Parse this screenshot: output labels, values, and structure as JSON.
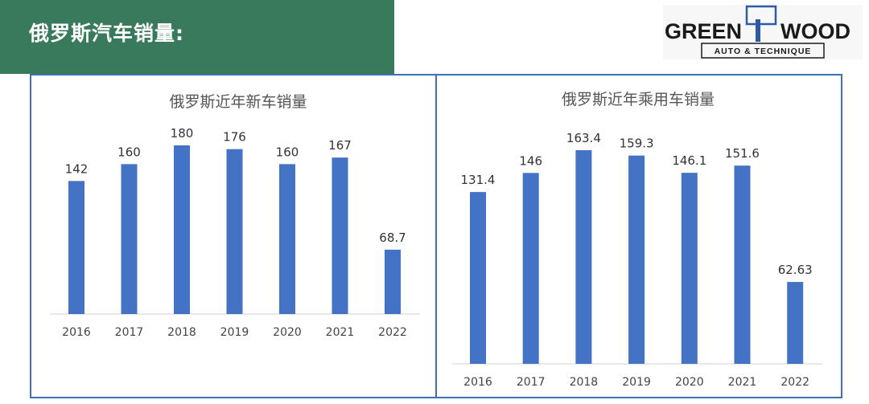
{
  "header": {
    "title": "俄罗斯汽车销量:"
  },
  "logo": {
    "word_left": "GREEN",
    "word_right": "WOOD",
    "tagline": "AUTO & TECHNIQUE"
  },
  "colors": {
    "header_green": "#3a7a5c",
    "bar_blue": "#4472c4",
    "frame_blue": "#3f6fb5"
  },
  "chart_data": [
    {
      "type": "bar",
      "title": "俄罗斯近年新车销量",
      "categories": [
        "2016",
        "2017",
        "2018",
        "2019",
        "2020",
        "2021",
        "2022"
      ],
      "values": [
        142,
        160,
        180,
        176,
        160,
        167,
        68.7
      ],
      "value_labels": [
        "142",
        "160",
        "180",
        "176",
        "160",
        "167",
        "68.7"
      ],
      "ylim": [
        0,
        180
      ],
      "grid": false,
      "legend": "none",
      "xlabel": "",
      "ylabel": ""
    },
    {
      "type": "bar",
      "title": "俄罗斯近年乘用车销量",
      "categories": [
        "2016",
        "2017",
        "2018",
        "2019",
        "2020",
        "2021",
        "2022"
      ],
      "values": [
        131.4,
        146,
        163.4,
        159.3,
        146.1,
        151.6,
        62.63
      ],
      "value_labels": [
        "131.4",
        "146",
        "163.4",
        "159.3",
        "146.1",
        "151.6",
        "62.63"
      ],
      "ylim": [
        0,
        163.4
      ],
      "grid": false,
      "legend": "none",
      "xlabel": "",
      "ylabel": ""
    }
  ]
}
